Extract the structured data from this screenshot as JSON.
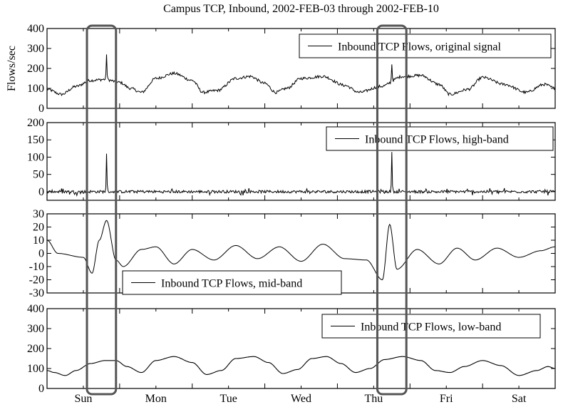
{
  "chart_data": {
    "type": "line",
    "title": "Campus TCP, Inbound, 2002-FEB-03 through 2002-FEB-10",
    "ylabel": "Flows/sec",
    "x_ticks": [
      "Sun",
      "Mon",
      "Tue",
      "Wed",
      "Thu",
      "Fri",
      "Sat"
    ],
    "xlim": [
      0,
      7
    ],
    "highlight_boxes": [
      [
        0.55,
        0.95
      ],
      [
        4.55,
        4.95
      ]
    ],
    "panels": [
      {
        "series_name": "Inbound TCP Flows, original signal",
        "ylim": [
          0,
          400
        ],
        "yticks": [
          "400",
          "300",
          "200",
          "100",
          "0"
        ],
        "spikes": [
          {
            "x": 0.82,
            "y": 270
          },
          {
            "x": 4.75,
            "y": 220
          }
        ],
        "points": [
          [
            0,
            95
          ],
          [
            0.2,
            70
          ],
          [
            0.4,
            110
          ],
          [
            0.6,
            140
          ],
          [
            0.8,
            145
          ],
          [
            1.0,
            130
          ],
          [
            1.15,
            100
          ],
          [
            1.3,
            80
          ],
          [
            1.5,
            150
          ],
          [
            1.75,
            175
          ],
          [
            2.0,
            140
          ],
          [
            2.15,
            80
          ],
          [
            2.35,
            90
          ],
          [
            2.6,
            150
          ],
          [
            2.8,
            160
          ],
          [
            3.0,
            125
          ],
          [
            3.15,
            80
          ],
          [
            3.3,
            100
          ],
          [
            3.5,
            150
          ],
          [
            3.8,
            160
          ],
          [
            4.1,
            115
          ],
          [
            4.3,
            80
          ],
          [
            4.6,
            110
          ],
          [
            4.9,
            160
          ],
          [
            5.15,
            165
          ],
          [
            5.4,
            120
          ],
          [
            5.55,
            70
          ],
          [
            5.8,
            95
          ],
          [
            6.0,
            155
          ],
          [
            6.3,
            120
          ],
          [
            6.6,
            80
          ],
          [
            6.85,
            120
          ],
          [
            7.0,
            100
          ]
        ]
      },
      {
        "series_name": "Inbound TCP Flows, high-band",
        "ylim": [
          -25,
          200
        ],
        "yticks": [
          "200",
          "150",
          "100",
          "50",
          "0"
        ],
        "spikes": [
          {
            "x": 0.82,
            "y": 110
          },
          {
            "x": 4.75,
            "y": 115
          }
        ],
        "points": [
          [
            0,
            0
          ],
          [
            7,
            0
          ]
        ]
      },
      {
        "series_name": "Inbound TCP Flows, mid-band",
        "ylim": [
          -30,
          30
        ],
        "yticks": [
          "30",
          "20",
          "10",
          "0",
          "-10",
          "-20",
          "-30"
        ],
        "points": [
          [
            0,
            10
          ],
          [
            0.15,
            0
          ],
          [
            0.5,
            -3
          ],
          [
            0.62,
            -15
          ],
          [
            0.72,
            10
          ],
          [
            0.82,
            25
          ],
          [
            0.95,
            -5
          ],
          [
            1.05,
            -10
          ],
          [
            1.3,
            3
          ],
          [
            1.5,
            5
          ],
          [
            1.75,
            -8
          ],
          [
            2.0,
            3
          ],
          [
            2.3,
            -5
          ],
          [
            2.6,
            6
          ],
          [
            2.9,
            -4
          ],
          [
            3.2,
            5
          ],
          [
            3.5,
            -6
          ],
          [
            3.8,
            7
          ],
          [
            4.1,
            -4
          ],
          [
            4.4,
            -5
          ],
          [
            4.62,
            -20
          ],
          [
            4.72,
            22
          ],
          [
            4.82,
            -12
          ],
          [
            5.1,
            3
          ],
          [
            5.4,
            -8
          ],
          [
            5.65,
            4
          ],
          [
            5.9,
            -5
          ],
          [
            6.2,
            4
          ],
          [
            6.5,
            -3
          ],
          [
            6.8,
            2
          ],
          [
            7.0,
            5
          ]
        ]
      },
      {
        "series_name": "Inbound TCP Flows, low-band",
        "ylim": [
          0,
          400
        ],
        "yticks": [
          "400",
          "300",
          "200",
          "100",
          "0"
        ],
        "points": [
          [
            0,
            90
          ],
          [
            0.1,
            80
          ],
          [
            0.25,
            65
          ],
          [
            0.4,
            90
          ],
          [
            0.6,
            125
          ],
          [
            0.8,
            140
          ],
          [
            0.95,
            140
          ],
          [
            1.1,
            110
          ],
          [
            1.3,
            80
          ],
          [
            1.5,
            140
          ],
          [
            1.75,
            160
          ],
          [
            2.0,
            130
          ],
          [
            2.2,
            70
          ],
          [
            2.4,
            90
          ],
          [
            2.6,
            150
          ],
          [
            2.85,
            160
          ],
          [
            3.05,
            130
          ],
          [
            3.25,
            75
          ],
          [
            3.45,
            95
          ],
          [
            3.65,
            150
          ],
          [
            3.85,
            160
          ],
          [
            4.05,
            125
          ],
          [
            4.25,
            80
          ],
          [
            4.45,
            100
          ],
          [
            4.65,
            145
          ],
          [
            4.9,
            160
          ],
          [
            5.15,
            140
          ],
          [
            5.35,
            90
          ],
          [
            5.55,
            80
          ],
          [
            5.75,
            110
          ],
          [
            6.0,
            140
          ],
          [
            6.25,
            115
          ],
          [
            6.5,
            65
          ],
          [
            6.75,
            90
          ],
          [
            6.9,
            110
          ],
          [
            7.0,
            100
          ]
        ]
      }
    ]
  }
}
